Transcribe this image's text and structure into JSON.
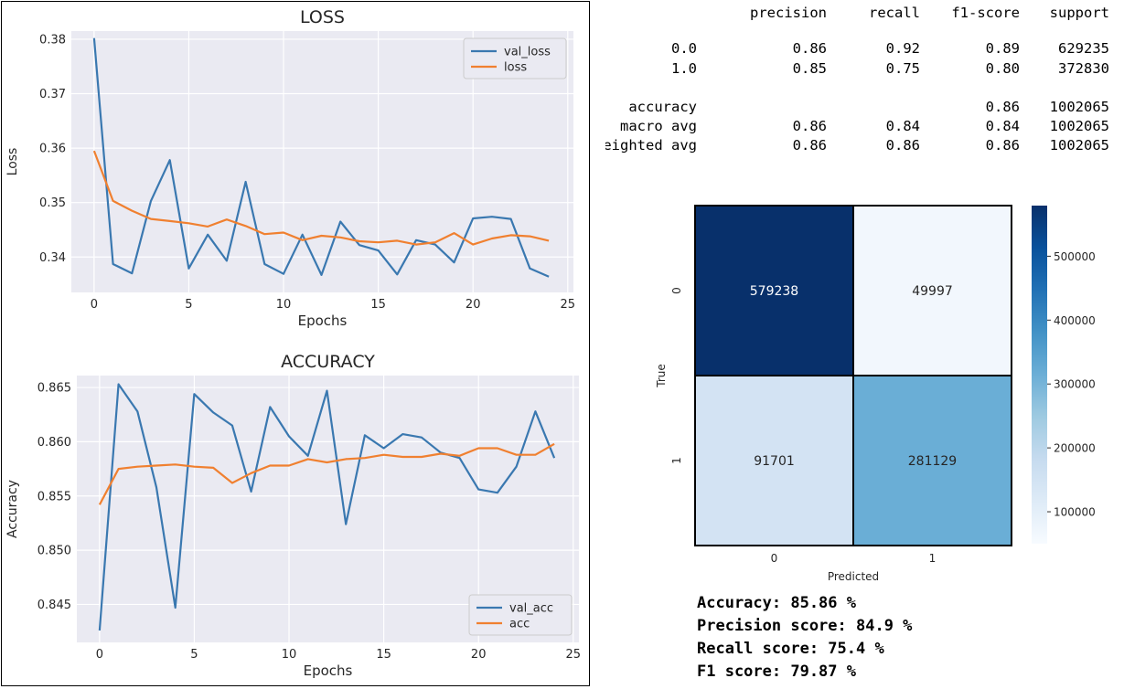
{
  "loss_chart": {
    "chart_data": {
      "type": "line",
      "title": "LOSS",
      "xlabel": "Epochs",
      "ylabel": "Loss",
      "x": [
        0,
        1,
        2,
        3,
        4,
        5,
        6,
        7,
        8,
        9,
        10,
        11,
        12,
        13,
        14,
        15,
        16,
        17,
        18,
        19,
        20,
        21,
        22,
        23,
        24
      ],
      "xlim": [
        -1.2,
        25.3
      ],
      "ylim": [
        0.3335,
        0.3815
      ],
      "xticks": [
        0,
        5,
        10,
        15,
        20,
        25
      ],
      "yticks": [
        0.34,
        0.35,
        0.36,
        0.37,
        0.38
      ],
      "ytick_labels": [
        "0.34",
        "0.35",
        "0.36",
        "0.37",
        "0.38"
      ],
      "legend_position": "top-right",
      "grid": true,
      "series": [
        {
          "name": "val_loss",
          "color": "#3a78b0",
          "values": [
            0.3802,
            0.3387,
            0.337,
            0.3503,
            0.3578,
            0.3379,
            0.3441,
            0.3393,
            0.3538,
            0.3387,
            0.3369,
            0.3441,
            0.3367,
            0.3465,
            0.3422,
            0.3412,
            0.3368,
            0.3431,
            0.3423,
            0.339,
            0.3471,
            0.3474,
            0.347,
            0.3379,
            0.3364
          ]
        },
        {
          "name": "loss",
          "color": "#f08030",
          "values": [
            0.3595,
            0.3503,
            0.3485,
            0.347,
            0.3466,
            0.3462,
            0.3456,
            0.3469,
            0.3457,
            0.3442,
            0.3445,
            0.3431,
            0.3439,
            0.3436,
            0.3429,
            0.3427,
            0.343,
            0.3423,
            0.3427,
            0.3444,
            0.3423,
            0.3434,
            0.344,
            0.3438,
            0.343
          ]
        }
      ]
    }
  },
  "acc_chart": {
    "chart_data": {
      "type": "line",
      "title": "ACCURACY",
      "xlabel": "Epochs",
      "ylabel": "Accuracy",
      "x": [
        0,
        1,
        2,
        3,
        4,
        5,
        6,
        7,
        8,
        9,
        10,
        11,
        12,
        13,
        14,
        15,
        16,
        17,
        18,
        19,
        20,
        21,
        22,
        23,
        24
      ],
      "xlim": [
        -1.2,
        25.3
      ],
      "ylim": [
        0.8415,
        0.8661
      ],
      "xticks": [
        0,
        5,
        10,
        15,
        20,
        25
      ],
      "yticks": [
        0.845,
        0.85,
        0.855,
        0.86,
        0.865
      ],
      "ytick_labels": [
        "0.845",
        "0.850",
        "0.855",
        "0.860",
        "0.865"
      ],
      "legend_position": "bottom-right",
      "grid": true,
      "series": [
        {
          "name": "val_acc",
          "color": "#3a78b0",
          "values": [
            0.8426,
            0.8653,
            0.8628,
            0.8558,
            0.8447,
            0.8644,
            0.8627,
            0.8615,
            0.8554,
            0.8632,
            0.8605,
            0.8587,
            0.8647,
            0.8524,
            0.8606,
            0.8594,
            0.8607,
            0.8604,
            0.859,
            0.8585,
            0.8556,
            0.8553,
            0.8577,
            0.8628,
            0.8585
          ]
        },
        {
          "name": "acc",
          "color": "#f08030",
          "values": [
            0.8542,
            0.8575,
            0.8577,
            0.8578,
            0.8579,
            0.8577,
            0.8576,
            0.8562,
            0.8571,
            0.8578,
            0.8578,
            0.8584,
            0.8581,
            0.8584,
            0.8585,
            0.8588,
            0.8586,
            0.8586,
            0.8589,
            0.8587,
            0.8594,
            0.8594,
            0.8588,
            0.8588,
            0.8598
          ]
        }
      ]
    }
  },
  "report": {
    "headers": [
      "precision",
      "recall",
      "f1-score",
      "support"
    ],
    "rows": [
      {
        "label": "0.0",
        "precision": "0.86",
        "recall": "0.92",
        "f1": "0.89",
        "support": "629235"
      },
      {
        "label": "1.0",
        "precision": "0.85",
        "recall": "0.75",
        "f1": "0.80",
        "support": "372830"
      },
      {
        "label": "accuracy",
        "precision": "",
        "recall": "",
        "f1": "0.86",
        "support": "1002065"
      },
      {
        "label": "macro avg",
        "precision": "0.86",
        "recall": "0.84",
        "f1": "0.84",
        "support": "1002065"
      },
      {
        "label": "weighted avg",
        "precision": "0.86",
        "recall": "0.86",
        "f1": "0.86",
        "support": "1002065"
      }
    ]
  },
  "confusion_matrix": {
    "chart_data": {
      "type": "heatmap",
      "xlabel": "Predicted",
      "ylabel": "True",
      "x_categories": [
        "0",
        "1"
      ],
      "y_categories": [
        "0",
        "1"
      ],
      "values": [
        [
          579238,
          49997
        ],
        [
          91701,
          281129
        ]
      ],
      "cell_colors": [
        [
          "#08306b",
          "#f2f7fd"
        ],
        [
          "#d3e3f3",
          "#6aaed6"
        ]
      ],
      "cell_text_colors": [
        [
          "#ffffff",
          "#262626"
        ],
        [
          "#262626",
          "#262626"
        ]
      ],
      "colorbar": {
        "range": [
          49997,
          579238
        ],
        "ticks": [
          100000,
          200000,
          300000,
          400000,
          500000
        ],
        "tick_labels": [
          "100000",
          "200000",
          "300000",
          "400000",
          "500000"
        ],
        "colors": [
          "#f7fbff",
          "#deebf7",
          "#c6dbef",
          "#9ecae1",
          "#6baed6",
          "#4292c6",
          "#2171b5",
          "#08519c",
          "#08306b"
        ]
      }
    }
  },
  "metrics": {
    "accuracy": "Accuracy: 85.86 %",
    "precision": "Precision score: 84.9 %",
    "recall": "Recall score: 75.4 %",
    "f1": "F1 score: 79.87 %"
  }
}
